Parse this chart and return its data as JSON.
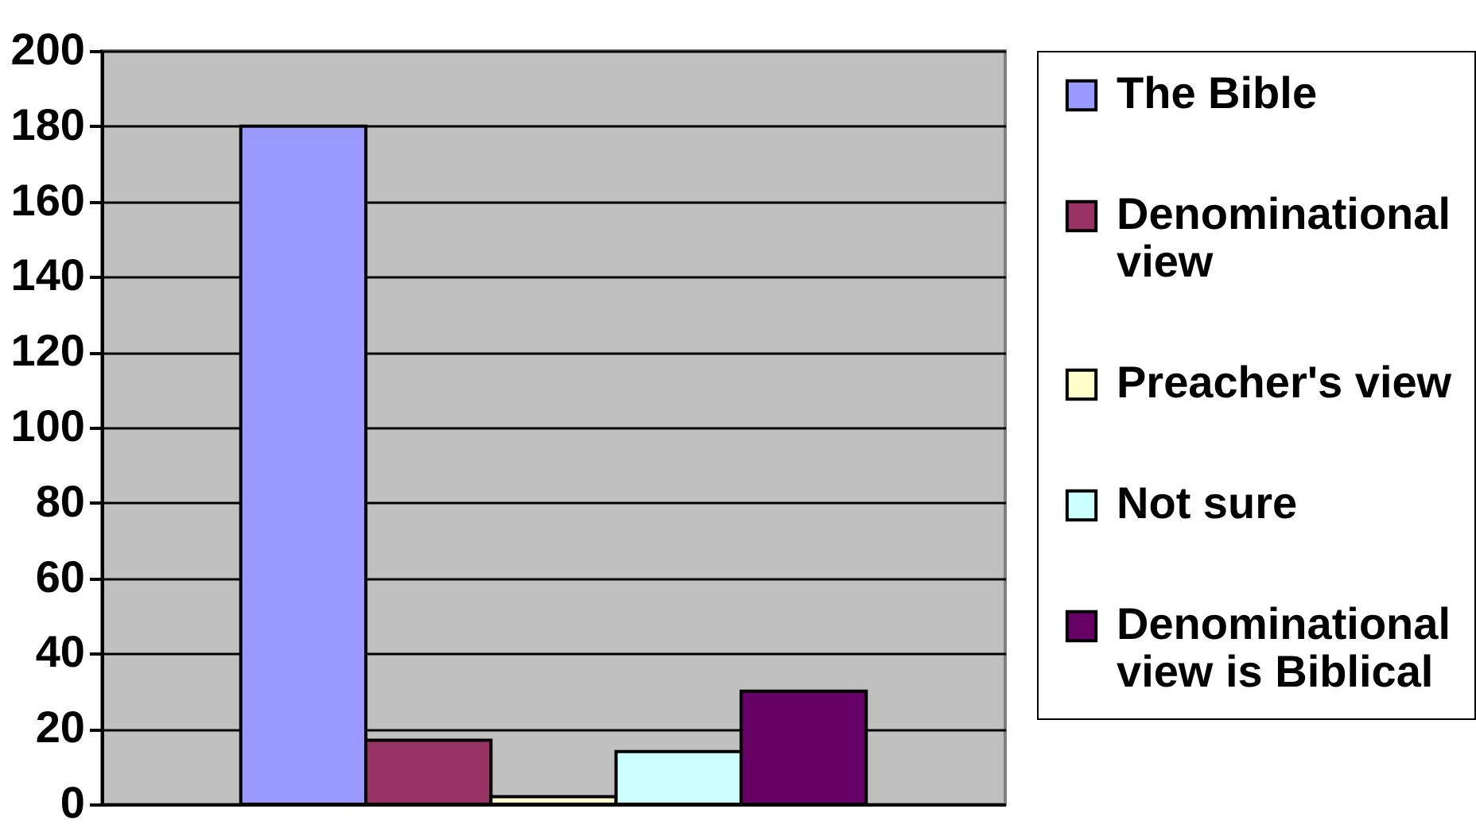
{
  "chart_data": {
    "type": "bar",
    "categories": [
      null
    ],
    "series": [
      {
        "name": "The Bible",
        "color": "#9999ff",
        "values": [
          180
        ]
      },
      {
        "name": "Denominational view",
        "color": "#993366",
        "values": [
          17
        ]
      },
      {
        "name": "Preacher's view",
        "color": "#ffffcc",
        "values": [
          2
        ]
      },
      {
        "name": "Not sure",
        "color": "#ccffff",
        "values": [
          14
        ]
      },
      {
        "name": "Denominational view is Biblical",
        "color": "#660066",
        "values": [
          30
        ]
      }
    ],
    "ylim": [
      0,
      200
    ],
    "yticks": [
      0,
      20,
      40,
      60,
      80,
      100,
      120,
      140,
      160,
      180,
      200
    ],
    "grid": "y",
    "legend": "right"
  }
}
